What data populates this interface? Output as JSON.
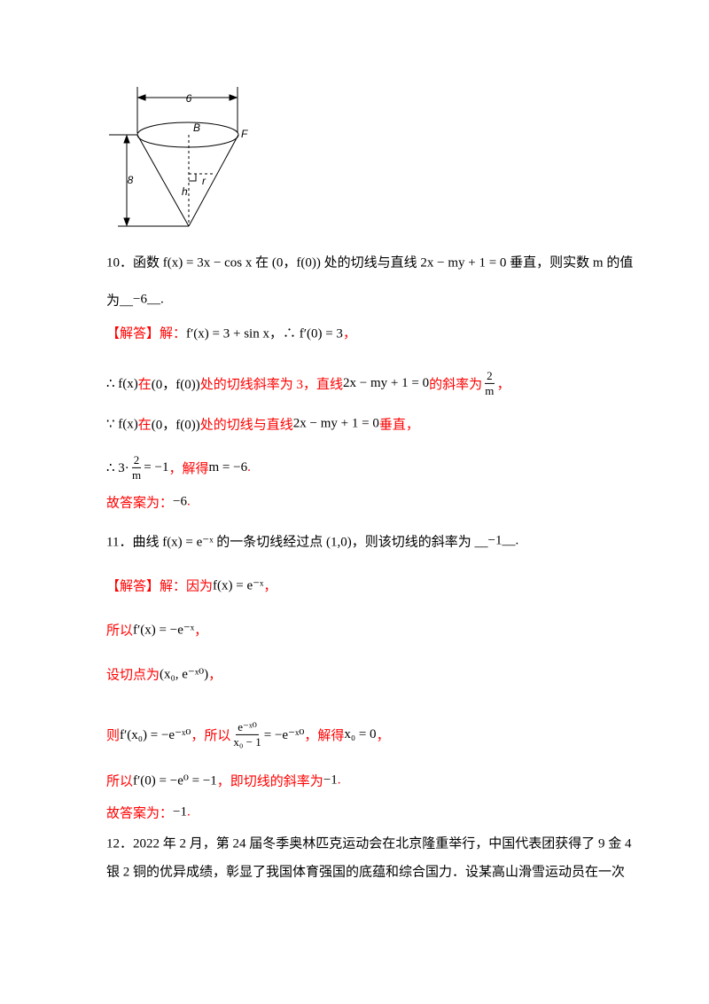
{
  "figure": {
    "width_label": "6",
    "height_label": "8",
    "labels": [
      "B",
      "F",
      "h",
      "r"
    ]
  },
  "lines": [
    [
      {
        "text": "10．函数 f(x) = 3x − cos x 在 (0，f(0)) 处的切线与直线 2x − my + 1 = 0 垂直，则实数 m 的值"
      }
    ],
    [
      {
        "text": "为__"
      },
      {
        "text": "−6"
      },
      {
        "text": "__."
      }
    ],
    [
      {
        "text": "【解答】解：",
        "color": "red"
      },
      {
        "text": "f′(x) = 3 + sin x，∴ f′(0) = 3"
      },
      {
        "text": "，",
        "color": "red"
      }
    ],
    [
      {
        "text": "∴ f(x)"
      },
      {
        "text": "在",
        "color": "red"
      },
      {
        "text": "(0，f(0))"
      },
      {
        "text": "处的切线斜率为 3，直线",
        "color": "red"
      },
      {
        "text": "2x − my + 1 = 0"
      },
      {
        "text": "的斜率为",
        "color": "red"
      },
      {
        "num": "2",
        "den": "m"
      },
      {
        "text": "，",
        "color": "red"
      }
    ],
    [
      {
        "text": "∵ f(x)"
      },
      {
        "text": "在",
        "color": "red"
      },
      {
        "text": "(0，f(0))"
      },
      {
        "text": "处的切线与直线",
        "color": "red"
      },
      {
        "text": "2x − my + 1 = 0"
      },
      {
        "text": "垂直，",
        "color": "red"
      }
    ],
    [
      {
        "text": "∴ 3·"
      },
      {
        "num": "2",
        "den": "m"
      },
      {
        "text": "= −1"
      },
      {
        "text": "，解得",
        "color": "red"
      },
      {
        "text": "m = −6"
      },
      {
        "text": ".",
        "color": "red"
      }
    ],
    [
      {
        "text": "故答案为：",
        "color": "red"
      },
      {
        "text": "−6"
      },
      {
        "text": ".",
        "color": "red"
      }
    ],
    [
      {
        "text": "11．曲线 f(x) = e⁻ˣ 的一条切线经过点 (1,0)，则该切线的斜率为 __"
      },
      {
        "text": "−1"
      },
      {
        "text": "__."
      }
    ],
    [
      {
        "text": "【解答】解：因为",
        "color": "red"
      },
      {
        "text": "f(x) = e⁻ˣ"
      },
      {
        "text": "，",
        "color": "red"
      }
    ],
    [
      {
        "text": "所以",
        "color": "red"
      },
      {
        "text": "f′(x) = −e⁻ˣ"
      },
      {
        "text": "，",
        "color": "red"
      }
    ],
    [
      {
        "text": "设切点为",
        "color": "red"
      },
      {
        "text": "(x₀, e⁻ˣ⁰)"
      },
      {
        "text": "，",
        "color": "red"
      }
    ],
    [
      {
        "text": "则",
        "color": "red"
      },
      {
        "text": "f′(x₀) = −e⁻ˣ⁰"
      },
      {
        "text": "，所以",
        "color": "red"
      },
      {
        "num": "e⁻ˣ⁰",
        "den": "x₀ − 1"
      },
      {
        "text": "= −e⁻ˣ⁰"
      },
      {
        "text": "，解得",
        "color": "red"
      },
      {
        "text": "x₀ = 0"
      },
      {
        "text": "，",
        "color": "red"
      }
    ],
    [
      {
        "text": "所以",
        "color": "red"
      },
      {
        "text": "f′(0) = −e⁰ = −1"
      },
      {
        "text": "，即切线的斜率为",
        "color": "red"
      },
      {
        "text": "−1"
      },
      {
        "text": ".",
        "color": "red"
      }
    ],
    [
      {
        "text": "故答案为：",
        "color": "red"
      },
      {
        "text": "−1"
      },
      {
        "text": ".",
        "color": "red"
      }
    ],
    [
      {
        "text": "12．2022 年 2 月，第 24 届冬季奥林匹克运动会在北京隆重举行，中国代表团获得了 9 金 4"
      }
    ],
    [
      {
        "text": "银 2 铜的优异成绩，彰显了我国体育强国的底蕴和综合国力．设某高山滑雪运动员在一次"
      }
    ]
  ]
}
